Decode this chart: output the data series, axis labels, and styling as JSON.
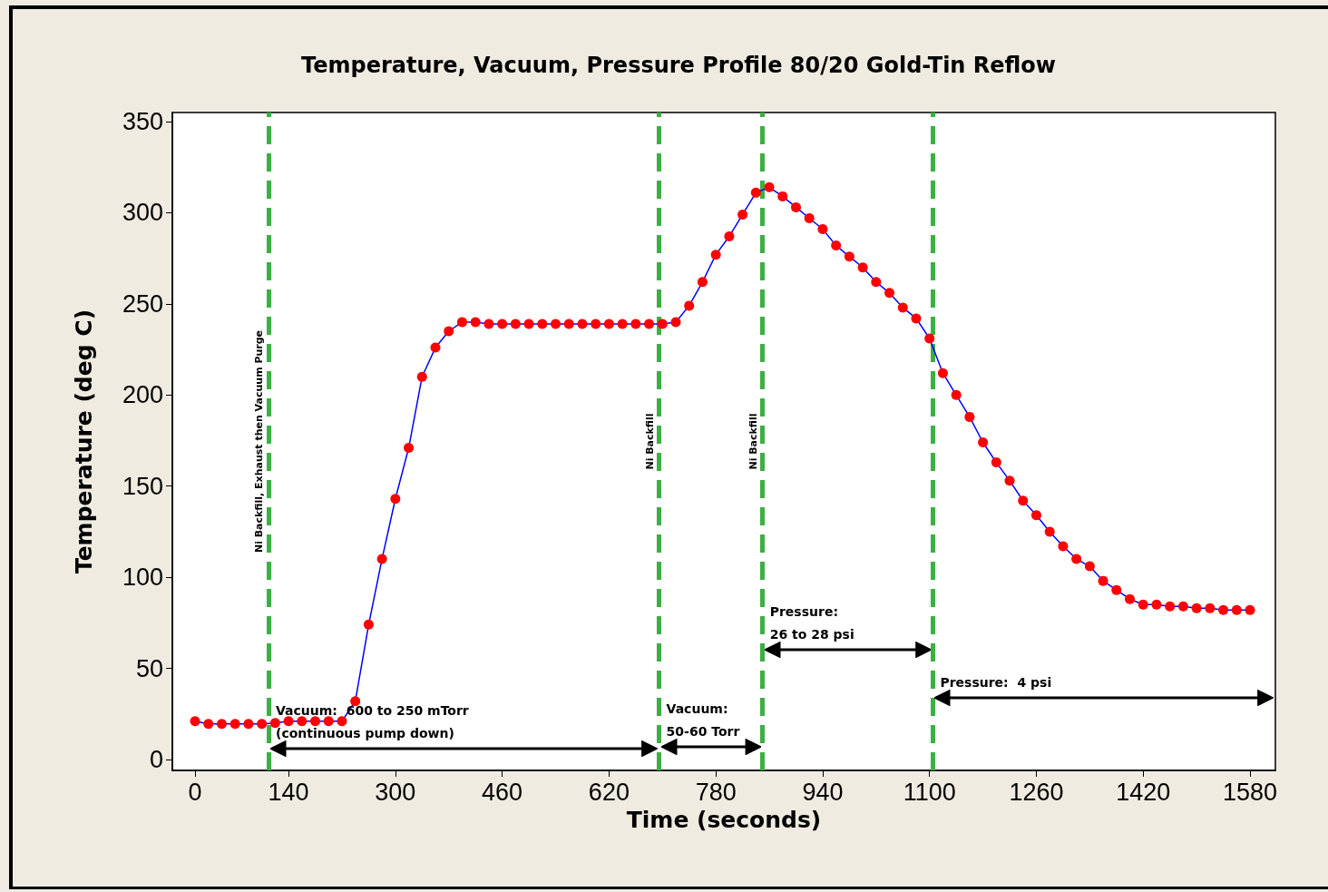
{
  "chart_data": {
    "type": "line",
    "title": "Temperature, Vacuum, Pressure Profile 80/20 Gold-Tin Reflow",
    "xlabel": "Time (seconds)",
    "ylabel": "Temperature (deg C)",
    "x": [
      0,
      20,
      40,
      60,
      80,
      100,
      120,
      140,
      160,
      180,
      200,
      220,
      240,
      260,
      280,
      300,
      320,
      340,
      360,
      380,
      400,
      420,
      440,
      460,
      480,
      500,
      520,
      540,
      560,
      580,
      600,
      620,
      640,
      660,
      680,
      700,
      720,
      740,
      760,
      780,
      800,
      820,
      840,
      860,
      880,
      900,
      920,
      940,
      960,
      980,
      1000,
      1020,
      1040,
      1060,
      1080,
      1100,
      1120,
      1140,
      1160,
      1180,
      1200,
      1220,
      1240,
      1260,
      1280,
      1300,
      1320,
      1340,
      1360,
      1380,
      1400,
      1420,
      1440,
      1460,
      1480,
      1500,
      1520,
      1540,
      1560,
      1580
    ],
    "series": [
      {
        "color": "#ff0000",
        "values": [
          21,
          19.5,
          19.5,
          19.5,
          19.5,
          19.5,
          20,
          21,
          21,
          21,
          21,
          21,
          32,
          74,
          110,
          143,
          171,
          210,
          226,
          235,
          240,
          240,
          239,
          239,
          239,
          239,
          239,
          239,
          239,
          239,
          239,
          239,
          239,
          239,
          239,
          239,
          240,
          249,
          262,
          277,
          287,
          299,
          311,
          314,
          309,
          303,
          297,
          291,
          282,
          276,
          270,
          262,
          256,
          248,
          242,
          231,
          212,
          200,
          188,
          174,
          163,
          153,
          142,
          134,
          125,
          117,
          110,
          106,
          98,
          93,
          88,
          85,
          85,
          84,
          84,
          83,
          83,
          82,
          82,
          82
        ]
      }
    ],
    "xlim": [
      -34,
      1618
    ],
    "xticks": [
      0,
      140,
      300,
      460,
      620,
      780,
      940,
      1100,
      1260,
      1420,
      1580
    ],
    "ylim": [
      -6,
      355
    ],
    "yticks": [
      0,
      50,
      100,
      150,
      200,
      250,
      300,
      350
    ],
    "marker": "circle",
    "line_style": "solid",
    "grid": false,
    "ref_lines": [
      {
        "axis": "x",
        "value": 110,
        "label": "Ni Backfill, Exhaust then Vacuum Purge",
        "color": "#3cb043",
        "line_style": "dashed"
      },
      {
        "axis": "x",
        "value": 695,
        "label": "Ni Backfill",
        "color": "#3cb043",
        "line_style": "dashed"
      },
      {
        "axis": "x",
        "value": 850,
        "label": "Ni Backfill",
        "color": "#3cb043",
        "line_style": "dashed"
      },
      {
        "axis": "x",
        "value": 1105,
        "color": "#3cb043",
        "line_style": "dashed"
      }
    ],
    "annotations": [
      {
        "text": "Vacuum:  600 to 250 mTorr\n(continuous pump down)",
        "x": 110,
        "y": 6
      },
      {
        "text": "Vacuum:\n50-60 Torr",
        "x": 695,
        "y": 7
      },
      {
        "text": "Pressure:\n26 to 28 psi",
        "x": 850,
        "y": 60
      },
      {
        "text": "Pressure:  4 psi",
        "x": 1105,
        "y": 34
      }
    ]
  }
}
